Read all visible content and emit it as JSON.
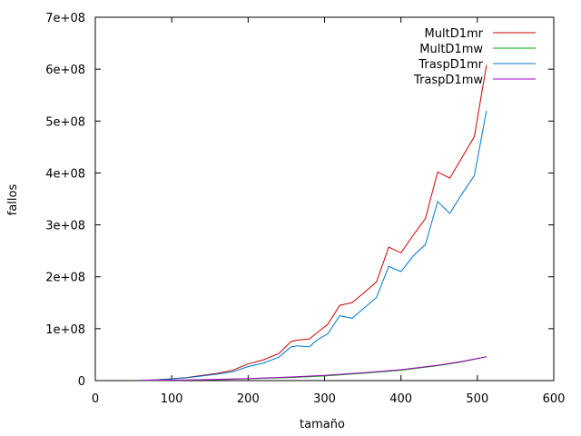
{
  "chart_data": {
    "type": "line",
    "title": "",
    "xlabel": "tamaño",
    "ylabel": "fallos",
    "xlim": [
      0,
      600
    ],
    "ylim": [
      0,
      700000000
    ],
    "x_ticks": [
      0,
      100,
      200,
      300,
      400,
      500,
      600
    ],
    "x_tick_labels": [
      "0",
      "100",
      "200",
      "300",
      "400",
      "500",
      "600"
    ],
    "y_ticks": [
      0,
      100000000,
      200000000,
      300000000,
      400000000,
      500000000,
      600000000,
      700000000
    ],
    "y_tick_labels": [
      "0",
      "1e+08",
      "2e+08",
      "3e+08",
      "4e+08",
      "5e+08",
      "6e+08",
      "7e+08"
    ],
    "grid": false,
    "legend_position": "top-right",
    "series": [
      {
        "name": "MultD1mr",
        "color": "#cc0000",
        "x": [
          60,
          80,
          100,
          120,
          140,
          160,
          180,
          190,
          200,
          220,
          240,
          256,
          264,
          280,
          290,
          304,
          320,
          336,
          352,
          368,
          384,
          400,
          416,
          432,
          448,
          464,
          480,
          496,
          512
        ],
        "y": [
          500000,
          1500000,
          3500000,
          6000000,
          10000000,
          14000000,
          20000000,
          26000000,
          32000000,
          40000000,
          52000000,
          75000000,
          78000000,
          80000000,
          92000000,
          108000000,
          145000000,
          150000000,
          170000000,
          190000000,
          257000000,
          246000000,
          280000000,
          312000000,
          402000000,
          390000000,
          430000000,
          470000000,
          608000000
        ]
      },
      {
        "name": "MultD1mw",
        "color": "#00aa00",
        "x": [
          60,
          100,
          150,
          200,
          256,
          300,
          350,
          400,
          450,
          480,
          512
        ],
        "y": [
          200000,
          600000,
          1500000,
          3500000,
          6000000,
          9000000,
          14000000,
          20000000,
          29000000,
          36000000,
          46000000
        ]
      },
      {
        "name": "TraspD1mr",
        "color": "#0077cc",
        "x": [
          60,
          80,
          100,
          120,
          140,
          160,
          180,
          190,
          200,
          220,
          240,
          256,
          264,
          280,
          290,
          304,
          320,
          336,
          352,
          368,
          384,
          400,
          416,
          432,
          448,
          464,
          480,
          496,
          512
        ],
        "y": [
          400000,
          1300000,
          3000000,
          5500000,
          9000000,
          12500000,
          17000000,
          22000000,
          27000000,
          34000000,
          45000000,
          65000000,
          67000000,
          65000000,
          78000000,
          90000000,
          125000000,
          120000000,
          140000000,
          160000000,
          220000000,
          210000000,
          240000000,
          262000000,
          345000000,
          322000000,
          360000000,
          395000000,
          520000000
        ]
      },
      {
        "name": "TraspD1mw",
        "color": "#aa00cc",
        "x": [
          60,
          100,
          150,
          200,
          256,
          300,
          350,
          400,
          450,
          480,
          512
        ],
        "y": [
          300000,
          800000,
          2000000,
          4000000,
          7000000,
          10000000,
          15000000,
          21000000,
          30000000,
          37000000,
          46000000
        ]
      }
    ]
  }
}
